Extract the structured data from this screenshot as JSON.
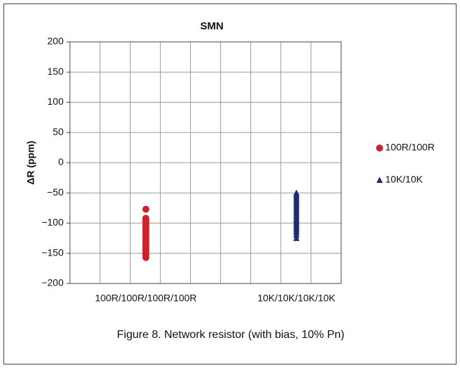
{
  "chart_data": {
    "type": "scatter",
    "title": "SMN",
    "ylabel": "ΔR (ppm)",
    "caption": "Figure 8.  Network resistor (with bias, 10% Pn)",
    "categories": [
      "100R/100R/100R/100R",
      "10K/10K/10K/10K"
    ],
    "series": [
      {
        "name": "100R/100R",
        "color": "#cc2229",
        "marker": "circle",
        "values": [
          -77,
          -92,
          -95,
          -98,
          -100,
          -103,
          -105,
          -108,
          -110,
          -113,
          -115,
          -118,
          -120,
          -122,
          -125,
          -128,
          -130,
          -133,
          -135,
          -138,
          -140,
          -143,
          -145,
          -148,
          -150,
          -153,
          -157
        ]
      },
      {
        "name": "10K/10K",
        "color": "#1f2d6b",
        "marker": "triangle",
        "values": [
          -50,
          -53,
          -56,
          -59,
          -62,
          -65,
          -68,
          -71,
          -74,
          -77,
          -80,
          -83,
          -86,
          -89,
          -92,
          -95,
          -98,
          -101,
          -104,
          -107,
          -110,
          -113,
          -116,
          -120,
          -125
        ]
      }
    ],
    "ylim": [
      -200,
      200
    ],
    "yticks": [
      200,
      150,
      100,
      50,
      0,
      {
        "value": -50,
        "label": "−50"
      },
      {
        "value": -100,
        "label": "−100"
      },
      {
        "value": -150,
        "label": "−150"
      },
      {
        "value": -200,
        "label": "−200"
      }
    ],
    "grid": true,
    "legend": "right"
  }
}
